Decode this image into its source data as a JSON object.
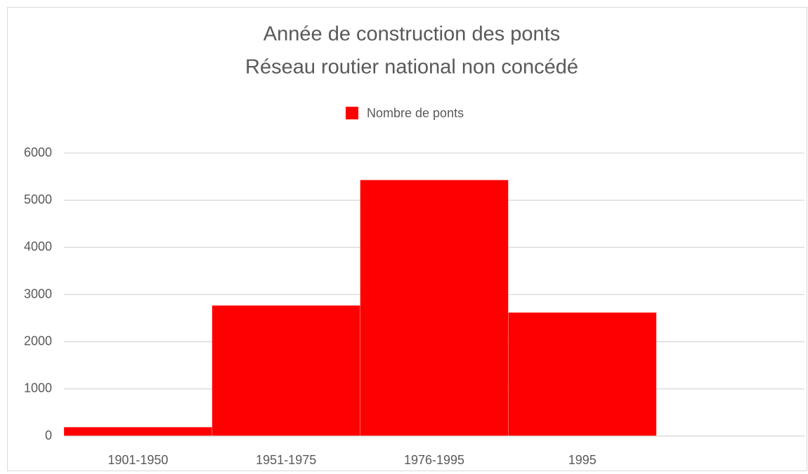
{
  "chart_data": {
    "type": "bar",
    "title": "Année de construction des ponts",
    "subtitle": "Réseau routier national non concédé",
    "categories": [
      "1901-1950",
      "1951-1975",
      "1976-1995",
      "1995",
      null
    ],
    "series": [
      {
        "name": "Nombre de ponts",
        "color": "#ff0000",
        "values": [
          190,
          2770,
          5430,
          2620,
          null
        ]
      }
    ],
    "ylim": [
      0,
      6000
    ],
    "yticks": [
      0,
      1000,
      2000,
      3000,
      4000,
      5000,
      6000
    ],
    "grid": true,
    "legend": "top"
  }
}
